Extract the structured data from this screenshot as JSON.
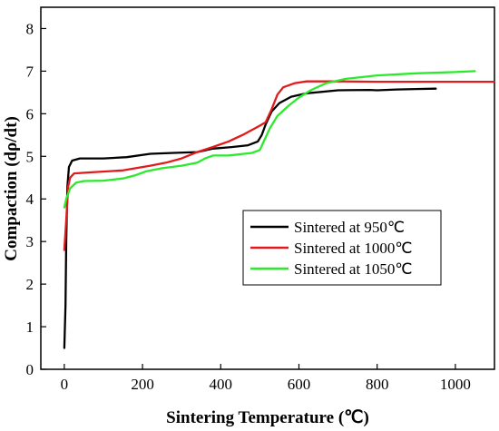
{
  "chart_data": {
    "type": "line",
    "xlabel": "Sintering Temperature (℃)",
    "ylabel": "Compaction (dρ/dt)",
    "xlim": [
      -60,
      1100
    ],
    "ylim": [
      0,
      8.5
    ],
    "x_ticks": [
      0,
      200,
      400,
      600,
      800,
      1000
    ],
    "y_ticks": [
      0,
      1,
      2,
      3,
      4,
      5,
      6,
      7,
      8
    ],
    "x_tick_labels": [
      "0",
      "200",
      "400",
      "600",
      "800",
      "1000"
    ],
    "y_tick_labels": [
      "0",
      "1",
      "2",
      "3",
      "4",
      "5",
      "6",
      "7",
      "8"
    ],
    "grid": false,
    "legend_position": "center-right",
    "series": [
      {
        "name": "Sintered at 950℃",
        "color": "#000000",
        "points": [
          [
            0,
            0.5
          ],
          [
            3,
            1.5
          ],
          [
            5,
            3.0
          ],
          [
            8,
            4.3
          ],
          [
            12,
            4.75
          ],
          [
            20,
            4.9
          ],
          [
            40,
            4.95
          ],
          [
            100,
            4.95
          ],
          [
            160,
            4.98
          ],
          [
            220,
            5.06
          ],
          [
            280,
            5.08
          ],
          [
            340,
            5.1
          ],
          [
            380,
            5.18
          ],
          [
            430,
            5.22
          ],
          [
            470,
            5.26
          ],
          [
            495,
            5.35
          ],
          [
            505,
            5.5
          ],
          [
            515,
            5.75
          ],
          [
            530,
            6.05
          ],
          [
            550,
            6.25
          ],
          [
            580,
            6.4
          ],
          [
            620,
            6.48
          ],
          [
            700,
            6.55
          ],
          [
            780,
            6.56
          ],
          [
            800,
            6.55
          ],
          [
            850,
            6.57
          ],
          [
            900,
            6.58
          ],
          [
            950,
            6.59
          ]
        ]
      },
      {
        "name": "Sintered at 1000℃",
        "color": "#e31a1c",
        "points": [
          [
            0,
            2.8
          ],
          [
            5,
            3.5
          ],
          [
            10,
            4.3
          ],
          [
            15,
            4.5
          ],
          [
            25,
            4.6
          ],
          [
            60,
            4.62
          ],
          [
            150,
            4.67
          ],
          [
            220,
            4.78
          ],
          [
            260,
            4.85
          ],
          [
            300,
            4.95
          ],
          [
            340,
            5.1
          ],
          [
            380,
            5.22
          ],
          [
            420,
            5.35
          ],
          [
            460,
            5.52
          ],
          [
            500,
            5.72
          ],
          [
            515,
            5.8
          ],
          [
            530,
            6.1
          ],
          [
            545,
            6.45
          ],
          [
            560,
            6.62
          ],
          [
            590,
            6.72
          ],
          [
            620,
            6.76
          ],
          [
            700,
            6.76
          ],
          [
            800,
            6.75
          ],
          [
            900,
            6.75
          ],
          [
            1000,
            6.75
          ],
          [
            1100,
            6.75
          ]
        ]
      },
      {
        "name": "Sintered at 1050℃",
        "color": "#2bea2b",
        "points": [
          [
            0,
            3.8
          ],
          [
            5,
            4.0
          ],
          [
            15,
            4.25
          ],
          [
            30,
            4.38
          ],
          [
            50,
            4.42
          ],
          [
            100,
            4.43
          ],
          [
            150,
            4.48
          ],
          [
            180,
            4.55
          ],
          [
            210,
            4.65
          ],
          [
            250,
            4.72
          ],
          [
            300,
            4.78
          ],
          [
            340,
            4.85
          ],
          [
            360,
            4.95
          ],
          [
            380,
            5.02
          ],
          [
            420,
            5.02
          ],
          [
            480,
            5.08
          ],
          [
            500,
            5.15
          ],
          [
            510,
            5.35
          ],
          [
            525,
            5.65
          ],
          [
            545,
            5.95
          ],
          [
            575,
            6.2
          ],
          [
            600,
            6.38
          ],
          [
            630,
            6.55
          ],
          [
            670,
            6.72
          ],
          [
            720,
            6.82
          ],
          [
            800,
            6.9
          ],
          [
            900,
            6.95
          ],
          [
            1000,
            6.98
          ],
          [
            1050,
            7.0
          ]
        ]
      }
    ]
  }
}
